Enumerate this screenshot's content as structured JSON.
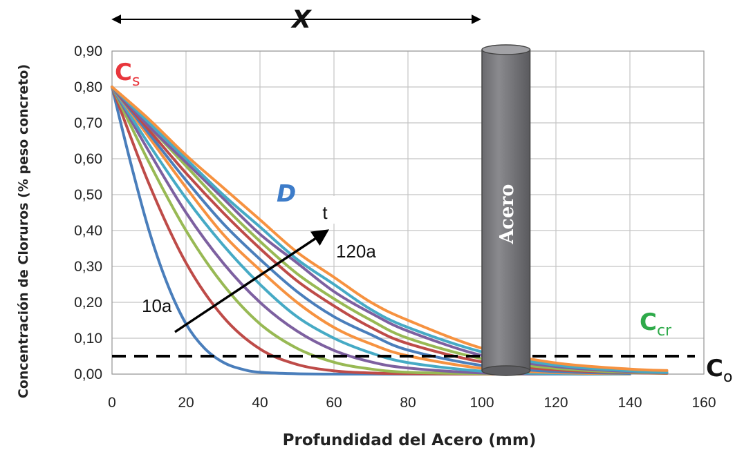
{
  "chart_data": {
    "type": "line",
    "title": "",
    "xlabel": "Profundidad del Acero (mm)",
    "ylabel": "Concentración de Cloruros (% peso concreto)",
    "xlim": [
      0,
      160
    ],
    "ylim": [
      0,
      0.9
    ],
    "x_ticks": [
      "0",
      "20",
      "40",
      "60",
      "80",
      "100",
      "120",
      "140",
      "160"
    ],
    "y_ticks": [
      "0,00",
      "0,10",
      "0,20",
      "0,30",
      "0,40",
      "0,50",
      "0,60",
      "0,70",
      "0,80",
      "0,90"
    ],
    "grid": true,
    "legend": "none",
    "surface_concentration": 0.8,
    "initial_concentration_line": 0.05,
    "series": [
      {
        "color": "#4a7ebb",
        "x": [
          0,
          5,
          10,
          15,
          20,
          25,
          30,
          35,
          40,
          50,
          60,
          80,
          100
        ],
        "y": [
          0.8,
          0.59,
          0.4,
          0.25,
          0.14,
          0.072,
          0.033,
          0.014,
          0.005,
          0.001,
          0,
          0,
          0
        ]
      },
      {
        "color": "#be4b48",
        "x": [
          0,
          10,
          20,
          30,
          40,
          50,
          60,
          70,
          80,
          100,
          120
        ],
        "y": [
          0.8,
          0.53,
          0.31,
          0.16,
          0.07,
          0.027,
          0.009,
          0.003,
          0.001,
          0,
          0
        ]
      },
      {
        "color": "#98b954",
        "x": [
          0,
          10,
          20,
          30,
          40,
          50,
          60,
          70,
          80,
          100,
          120
        ],
        "y": [
          0.8,
          0.59,
          0.4,
          0.25,
          0.14,
          0.072,
          0.033,
          0.014,
          0.005,
          0.001,
          0
        ]
      },
      {
        "color": "#7d60a0",
        "x": [
          0,
          10,
          20,
          30,
          40,
          50,
          60,
          70,
          80,
          100,
          120,
          140
        ],
        "y": [
          0.8,
          0.62,
          0.45,
          0.31,
          0.2,
          0.12,
          0.066,
          0.034,
          0.017,
          0.003,
          0,
          0
        ]
      },
      {
        "color": "#46aac5",
        "x": [
          0,
          10,
          20,
          30,
          40,
          50,
          60,
          70,
          80,
          100,
          120,
          140
        ],
        "y": [
          0.8,
          0.64,
          0.49,
          0.36,
          0.25,
          0.16,
          0.1,
          0.059,
          0.032,
          0.008,
          0.001,
          0
        ]
      },
      {
        "color": "#f69240",
        "x": [
          0,
          10,
          20,
          30,
          40,
          50,
          60,
          70,
          80,
          100,
          120,
          140
        ],
        "y": [
          0.8,
          0.66,
          0.52,
          0.39,
          0.29,
          0.2,
          0.13,
          0.084,
          0.051,
          0.016,
          0.004,
          0.001
        ]
      },
      {
        "color": "#4a7ebb",
        "x": [
          0,
          10,
          20,
          30,
          40,
          50,
          60,
          70,
          80,
          100,
          120,
          140
        ],
        "y": [
          0.8,
          0.67,
          0.54,
          0.42,
          0.32,
          0.23,
          0.16,
          0.11,
          0.067,
          0.024,
          0.007,
          0.002
        ]
      },
      {
        "color": "#be4b48",
        "x": [
          0,
          10,
          20,
          30,
          40,
          50,
          60,
          70,
          80,
          100,
          120,
          140,
          150
        ],
        "y": [
          0.8,
          0.68,
          0.56,
          0.45,
          0.35,
          0.26,
          0.19,
          0.13,
          0.085,
          0.034,
          0.012,
          0.004,
          0.002
        ]
      },
      {
        "color": "#98b954",
        "x": [
          0,
          10,
          20,
          30,
          40,
          50,
          60,
          70,
          80,
          100,
          120,
          140,
          150
        ],
        "y": [
          0.8,
          0.69,
          0.58,
          0.47,
          0.37,
          0.28,
          0.21,
          0.15,
          0.1,
          0.043,
          0.016,
          0.005,
          0.003
        ]
      },
      {
        "color": "#7d60a0",
        "x": [
          0,
          10,
          20,
          30,
          40,
          50,
          60,
          70,
          80,
          100,
          120,
          140,
          150
        ],
        "y": [
          0.8,
          0.69,
          0.59,
          0.49,
          0.39,
          0.31,
          0.23,
          0.17,
          0.12,
          0.052,
          0.021,
          0.007,
          0.004
        ]
      },
      {
        "color": "#46aac5",
        "x": [
          0,
          10,
          20,
          30,
          40,
          50,
          60,
          70,
          80,
          100,
          120,
          140,
          150
        ],
        "y": [
          0.8,
          0.7,
          0.6,
          0.5,
          0.41,
          0.32,
          0.25,
          0.18,
          0.13,
          0.062,
          0.025,
          0.009,
          0.005
        ]
      },
      {
        "color": "#f69240",
        "x": [
          0,
          10,
          20,
          30,
          40,
          50,
          60,
          70,
          80,
          100,
          120,
          140,
          150
        ],
        "y": [
          0.8,
          0.71,
          0.61,
          0.52,
          0.43,
          0.34,
          0.27,
          0.2,
          0.15,
          0.072,
          0.031,
          0.014,
          0.01
        ]
      }
    ],
    "annotations": {
      "cs": {
        "main": "C",
        "sub": "s",
        "color": "#e8363c"
      },
      "d": {
        "text": "D",
        "color": "#3d7cc9"
      },
      "t": {
        "text": "t"
      },
      "t120": {
        "text": "120a"
      },
      "t10": {
        "text": "10a"
      },
      "ccr": {
        "main": "C",
        "sub": "cr",
        "color": "#2eaa4a"
      },
      "co": {
        "main": "C",
        "sub": "o",
        "color": "#111111"
      },
      "x_span": {
        "text": "X",
        "from": 0,
        "to": 100
      },
      "rebar": {
        "text": "Acero",
        "x_from": 100,
        "x_to": 113
      }
    }
  }
}
